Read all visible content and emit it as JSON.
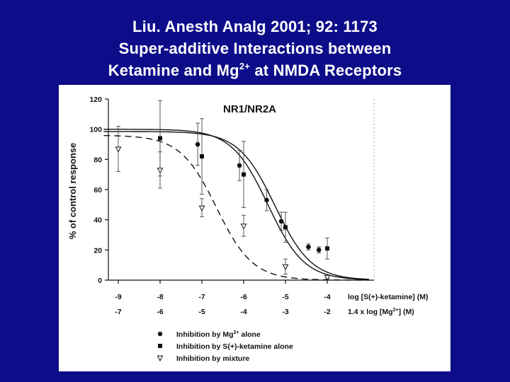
{
  "title": {
    "line1": "Liu. Anesth Analg 2001; 92: 1173",
    "line2": "Super-additive Interactions between",
    "line3_prefix": "Ketamine and Mg",
    "line3_sup": "2+",
    "line3_suffix": " at NMDA Receptors"
  },
  "chart_data": {
    "type": "line",
    "panel_title": "NR1/NR2A",
    "ylabel": "% of control response",
    "ylim": [
      0,
      120
    ],
    "yticks": [
      0,
      20,
      40,
      60,
      80,
      100,
      120
    ],
    "xlim": [
      -9,
      -4
    ],
    "x_axis_label": "log [S(+)-ketamine] (M)",
    "x_ticks": [
      "-9",
      "-8",
      "-7",
      "-6",
      "-5",
      "-4"
    ],
    "x2_axis_label_prefix": "1.4 x log [Mg",
    "x2_axis_label_sup": "2+",
    "x2_axis_label_suffix": "] (M)",
    "x2_ticks": [
      "-7",
      "-6",
      "-5",
      "-4",
      "-3",
      "-2"
    ],
    "series": [
      {
        "name_prefix": "Inhibition by Mg",
        "name_sup": "2+",
        "name_suffix": " alone",
        "marker": "filled-circle",
        "curve": {
          "top": 98.5,
          "bottom": 0,
          "log_ic50": -5.25,
          "hill": 0.5
        },
        "points": [
          {
            "x": -7.1,
            "y": 90,
            "err": 14
          },
          {
            "x": -6.1,
            "y": 76,
            "err": 10
          },
          {
            "x": -5.45,
            "y": 53,
            "err": 7
          },
          {
            "x": -5.1,
            "y": 39,
            "err": 6
          },
          {
            "x": -4.45,
            "y": 22,
            "err": 2
          },
          {
            "x": -4.2,
            "y": 20,
            "err": 2
          }
        ]
      },
      {
        "name": "Inhibition by S(+)-ketamine alone",
        "marker": "filled-square",
        "curve": {
          "top": 100,
          "bottom": 0,
          "log_ic50": -5.42,
          "hill": 0.5
        },
        "points": [
          {
            "x": -8.0,
            "y": 94,
            "err": 25
          },
          {
            "x": -7.0,
            "y": 82,
            "err": 25
          },
          {
            "x": -6.0,
            "y": 70,
            "err": 22
          },
          {
            "x": -5.0,
            "y": 35,
            "err": 10
          },
          {
            "x": -4.0,
            "y": 21,
            "err": 7
          }
        ]
      },
      {
        "name": "Inhibition by mixture",
        "marker": "open-triangle",
        "curve": {
          "top": 96,
          "bottom": 0,
          "log_ic50": -6.65,
          "hill": 0.5
        },
        "points": [
          {
            "x": -9.0,
            "y": 87,
            "err": 15
          },
          {
            "x": -8.0,
            "y": 73,
            "err": 12
          },
          {
            "x": -7.0,
            "y": 48,
            "err": 6
          },
          {
            "x": -6.0,
            "y": 36,
            "err": 7
          },
          {
            "x": -5.0,
            "y": 9,
            "err": 5
          },
          {
            "x": -4.0,
            "y": 2,
            "err": 1
          }
        ]
      }
    ]
  }
}
